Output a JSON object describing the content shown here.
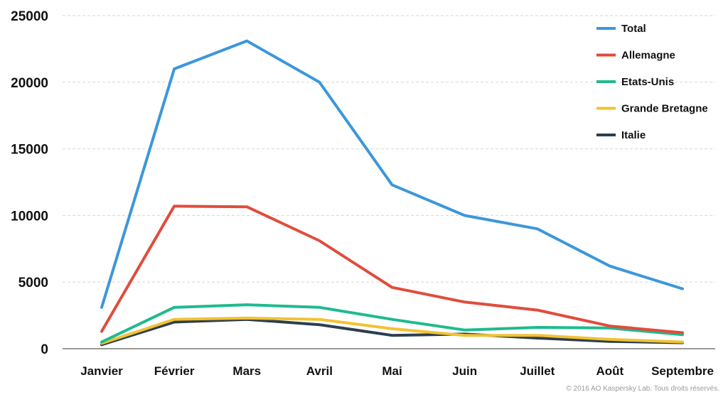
{
  "chart_data": {
    "type": "line",
    "title": "",
    "xlabel": "",
    "ylabel": "",
    "categories": [
      "Janvier",
      "Février",
      "Mars",
      "Avril",
      "Mai",
      "Juin",
      "Juillet",
      "Août",
      "Septembre"
    ],
    "ylim": [
      0,
      25000
    ],
    "yticks": [
      0,
      5000,
      10000,
      15000,
      20000,
      25000
    ],
    "grid": true,
    "legend_position": "top-right",
    "series": [
      {
        "name": "Total",
        "color": "#3c97da",
        "values": [
          3100,
          21000,
          23100,
          20000,
          12300,
          10000,
          9000,
          6200,
          4500
        ]
      },
      {
        "name": "Allemagne",
        "color": "#e04c3c",
        "values": [
          1300,
          10700,
          10650,
          8100,
          4600,
          3500,
          2900,
          1700,
          1200
        ]
      },
      {
        "name": "Etats-Unis",
        "color": "#1fba8e",
        "values": [
          500,
          3100,
          3300,
          3100,
          2200,
          1400,
          1600,
          1550,
          1050
        ]
      },
      {
        "name": "Grande Bretagne",
        "color": "#f1c232",
        "values": [
          400,
          2200,
          2300,
          2200,
          1500,
          1000,
          1000,
          700,
          500
        ]
      },
      {
        "name": "Italie",
        "color": "#2d3e50",
        "values": [
          300,
          2000,
          2200,
          1800,
          1000,
          1100,
          800,
          550,
          450
        ]
      }
    ]
  },
  "copyright": "© 2016 AO Kaspersky Lab. Tous droits réservés."
}
